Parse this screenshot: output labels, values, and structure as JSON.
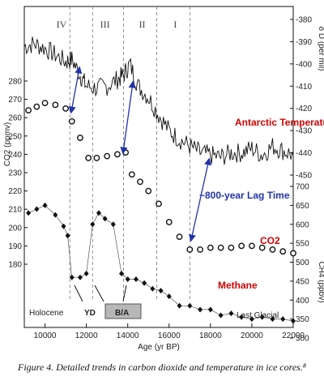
{
  "chart_data": {
    "type": "line",
    "xlabel": "Age (yr BP)",
    "x_ticks": [
      10000,
      12000,
      14000,
      16000,
      18000,
      20000,
      22000
    ],
    "xlim": [
      9000,
      22000
    ],
    "left_axis": {
      "label": "CO2 (ppmv)",
      "ticks": [
        180,
        190,
        200,
        210,
        220,
        230,
        240,
        250,
        260,
        270,
        280
      ],
      "ylim": [
        170,
        285
      ]
    },
    "right_axis_top": {
      "label": "δ D (per mil)",
      "ticks": [
        -380,
        -390,
        -400,
        -410,
        -420,
        -430,
        -440,
        -450
      ],
      "ylim": [
        -452,
        -375
      ]
    },
    "right_axis_bottom": {
      "label": "CH4 (ppbv)",
      "ticks": [
        700,
        650,
        600,
        550,
        500,
        450,
        400,
        350,
        300
      ],
      "ylim": [
        290,
        710
      ]
    },
    "periods": [
      {
        "label": "IV",
        "x": 10800
      },
      {
        "label": "III",
        "x": 12900
      },
      {
        "label": "II",
        "x": 14700
      },
      {
        "label": "I",
        "x": 16300
      }
    ],
    "period_boundaries": [
      11200,
      12300,
      13800,
      15400,
      17000
    ],
    "series": [
      {
        "name": "Antarctic Temperature",
        "color": "#d40000",
        "x": [
          9000,
          9500,
          10000,
          10500,
          11000,
          11300,
          11700,
          12000,
          12500,
          13000,
          13500,
          13800,
          14100,
          14500,
          15000,
          15500,
          16000,
          16500,
          17000,
          17500,
          18000,
          18500,
          19000,
          19500,
          20000,
          20500,
          21000,
          21500,
          22000
        ],
        "values": [
          -392,
          -391,
          -393,
          -396,
          -399,
          -398,
          -405,
          -410,
          -411,
          -410,
          -407,
          -405,
          -400,
          -410,
          -415,
          -423,
          -430,
          -434,
          -437,
          -440,
          -441,
          -442,
          -440,
          -440,
          -438,
          -441,
          -437,
          -439,
          -441
        ]
      },
      {
        "name": "CO2",
        "color": "#d40000",
        "x": [
          9200,
          9600,
          10000,
          10500,
          11000,
          11300,
          11700,
          12100,
          12500,
          13000,
          13500,
          13900,
          14200,
          14600,
          15000,
          15500,
          16000,
          16500,
          17000,
          17500,
          18000,
          18500,
          19000,
          19500,
          20000,
          20500,
          21000,
          21500,
          22000
        ],
        "values": [
          264,
          266,
          268,
          267,
          265,
          258,
          249,
          238,
          238,
          239,
          240,
          241,
          229,
          225,
          220,
          213,
          203,
          195,
          188,
          188,
          189,
          189,
          189,
          190,
          190,
          189,
          188,
          187,
          186
        ]
      },
      {
        "name": "Methane",
        "color": "#d40000",
        "x": [
          9200,
          9600,
          10000,
          10500,
          10900,
          11100,
          11300,
          11700,
          12000,
          12300,
          12600,
          12900,
          13300,
          13700,
          14000,
          14400,
          14800,
          15200,
          15600,
          16000,
          16500,
          17000,
          17500,
          18000,
          18500,
          19000,
          19500,
          20000,
          20500,
          21000,
          21500,
          22000
        ],
        "values": [
          630,
          640,
          650,
          625,
          595,
          570,
          460,
          460,
          470,
          600,
          630,
          615,
          600,
          470,
          455,
          455,
          445,
          430,
          425,
          410,
          385,
          385,
          375,
          375,
          360,
          365,
          355,
          350,
          355,
          350,
          350,
          345
        ]
      }
    ],
    "annotations": [
      "Antarctic Temperature",
      "~800-year Lag Time",
      "CO2",
      "Methane"
    ],
    "bottom_labels": [
      "Holocene",
      "YD",
      "B/A",
      "Last Glacial"
    ]
  },
  "caption": "Figure 4. Detailed trends in carbon dioxide and temperature in ice cores.⁸"
}
